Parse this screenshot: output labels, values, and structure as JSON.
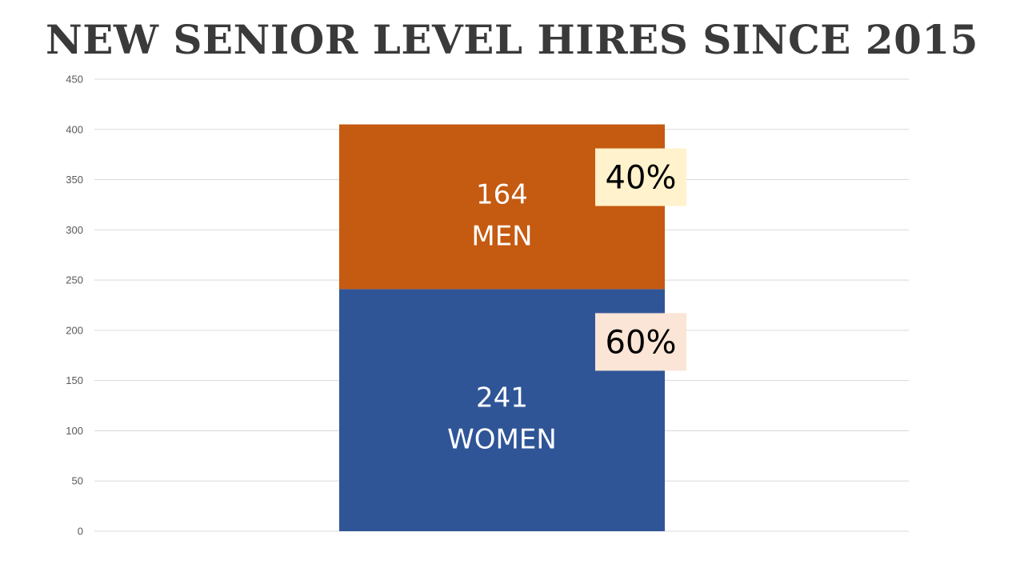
{
  "chart_data": {
    "type": "bar",
    "stacked": true,
    "title": "NEW SENIOR LEVEL HIRES SINCE 2015",
    "ylim": [
      0,
      450
    ],
    "yticks": [
      0,
      50,
      100,
      150,
      200,
      250,
      300,
      350,
      400,
      450
    ],
    "grid": true,
    "series": [
      {
        "name": "WOMEN",
        "value": 241,
        "label": "241",
        "percent": "60%",
        "color": "#2F5597",
        "badge_color": "#FBE5D6"
      },
      {
        "name": "MEN",
        "value": 164,
        "label": "164",
        "percent": "40%",
        "color": "#C55A11",
        "badge_color": "#FFF2CC"
      }
    ]
  },
  "colors": {
    "gridline": "#D9D9D9",
    "tick_text": "#595959",
    "title": "#3A3A3A"
  }
}
